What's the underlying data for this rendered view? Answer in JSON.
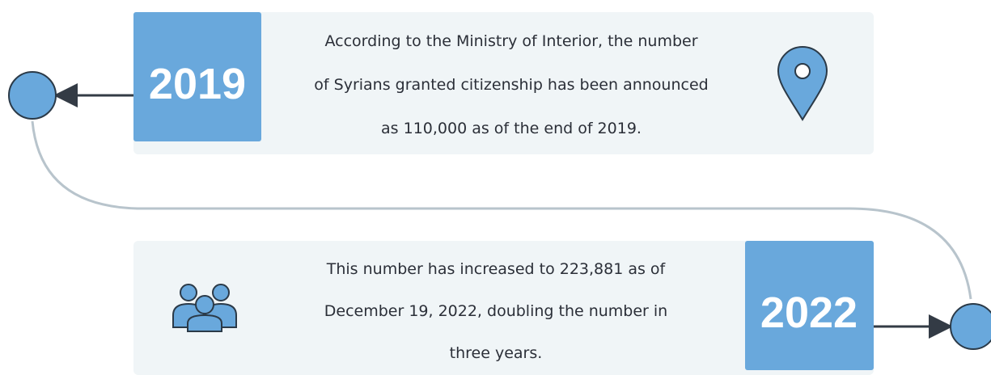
{
  "items": [
    {
      "year": "2019",
      "text_lines": [
        "According to the Ministry of Interior, the number",
        "of Syrians granted citizenship has been announced",
        "as 110,000 as of the end of 2019."
      ]
    },
    {
      "year": "2022",
      "text_lines": [
        "This number has increased to 223,881 as of",
        "December 19, 2022, doubling the number in",
        "three years."
      ]
    }
  ]
}
